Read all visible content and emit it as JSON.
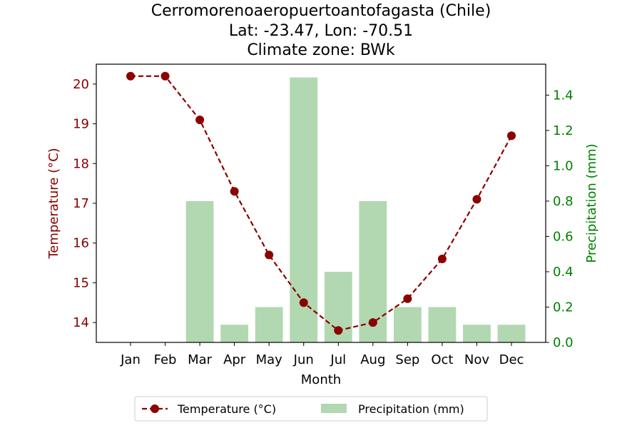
{
  "title_lines": [
    "Cerromorenoaeropuertoantofagasta (Chile)",
    "Lat: -23.47, Lon: -70.51",
    "Climate zone: BWk"
  ],
  "colors": {
    "temperature": "#8b0000",
    "precipitation_bar": "#b2d8b2",
    "precipitation_axis": "#008000",
    "axis": "#000000"
  },
  "chart_data": {
    "type": "bar+line",
    "categories": [
      "Jan",
      "Feb",
      "Mar",
      "Apr",
      "May",
      "Jun",
      "Jul",
      "Aug",
      "Sep",
      "Oct",
      "Nov",
      "Dec"
    ],
    "xlabel": "Month",
    "temperature": {
      "name": "Temperature (°C)",
      "axis_label": "Temperature (°C)",
      "values": [
        20.2,
        20.2,
        19.1,
        17.3,
        15.7,
        14.5,
        13.8,
        14.0,
        14.6,
        15.6,
        17.1,
        18.7
      ],
      "ylim": [
        13.5,
        20.5
      ],
      "ticks": [
        14,
        15,
        16,
        17,
        18,
        19,
        20
      ],
      "line_style": "dashed",
      "marker": "circle"
    },
    "precipitation": {
      "name": "Precipitation (mm)",
      "axis_label": "Precipitation (mm)",
      "values": [
        0.0,
        0.0,
        0.8,
        0.1,
        0.2,
        1.5,
        0.4,
        0.8,
        0.2,
        0.2,
        0.1,
        0.1
      ],
      "ylim": [
        0.0,
        1.575
      ],
      "ticks": [
        "0.0",
        "0.2",
        "0.4",
        "0.6",
        "0.8",
        "1.0",
        "1.2",
        "1.4"
      ]
    },
    "legend_position": "bottom-center"
  }
}
